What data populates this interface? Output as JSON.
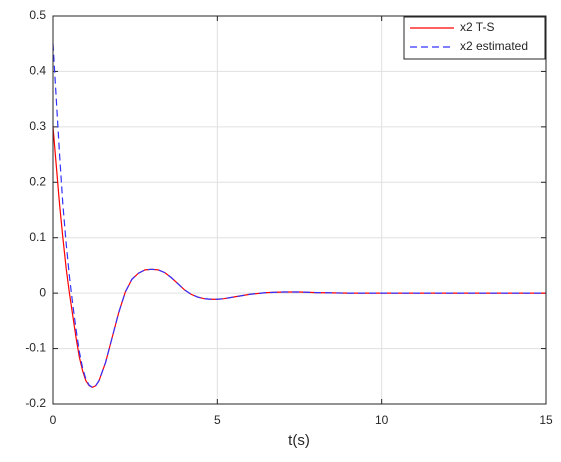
{
  "chart_data": {
    "type": "line",
    "xlabel": "t(s)",
    "x": [
      0,
      0.1,
      0.2,
      0.3,
      0.4,
      0.5,
      0.6,
      0.7,
      0.8,
      0.9,
      1.0,
      1.1,
      1.2,
      1.3,
      1.4,
      1.6,
      1.8,
      2.0,
      2.2,
      2.4,
      2.6,
      2.8,
      3.0,
      3.2,
      3.4,
      3.6,
      3.8,
      4.0,
      4.2,
      4.4,
      4.6,
      4.8,
      5.0,
      5.2,
      5.5,
      6.0,
      6.5,
      7.0,
      7.5,
      8.0,
      9,
      10,
      11,
      12,
      13,
      14,
      15
    ],
    "series": [
      {
        "name": "x2 T-S",
        "color": "#ff0000",
        "dash": false,
        "values": [
          0.3,
          0.23,
          0.16,
          0.1,
          0.045,
          0.0,
          -0.04,
          -0.08,
          -0.115,
          -0.14,
          -0.158,
          -0.167,
          -0.17,
          -0.167,
          -0.158,
          -0.125,
          -0.08,
          -0.035,
          0.002,
          0.025,
          0.036,
          0.042,
          0.043,
          0.042,
          0.037,
          0.028,
          0.017,
          0.006,
          -0.002,
          -0.007,
          -0.01,
          -0.011,
          -0.011,
          -0.01,
          -0.007,
          -0.002,
          0.001,
          0.002,
          0.002,
          0.001,
          0,
          0,
          0,
          0,
          0,
          0,
          0
        ]
      },
      {
        "name": "x2 estimated",
        "color": "#3333ff",
        "dash": true,
        "values": [
          0.45,
          0.35,
          0.25,
          0.16,
          0.09,
          0.03,
          -0.02,
          -0.065,
          -0.105,
          -0.135,
          -0.155,
          -0.166,
          -0.17,
          -0.167,
          -0.158,
          -0.125,
          -0.08,
          -0.035,
          0.002,
          0.025,
          0.036,
          0.042,
          0.043,
          0.042,
          0.037,
          0.028,
          0.017,
          0.006,
          -0.002,
          -0.007,
          -0.01,
          -0.011,
          -0.011,
          -0.01,
          -0.007,
          -0.002,
          0.001,
          0.002,
          0.002,
          0.001,
          0,
          0,
          0,
          0,
          0,
          0,
          0
        ]
      }
    ],
    "xlim": [
      0,
      15
    ],
    "xticks": [
      0,
      5,
      10,
      15
    ],
    "ylim": [
      -0.2,
      0.5
    ],
    "yticks": [
      -0.2,
      -0.1,
      0,
      0.1,
      0.2,
      0.3,
      0.4,
      0.5
    ],
    "grid": true,
    "legend": "top-right"
  }
}
